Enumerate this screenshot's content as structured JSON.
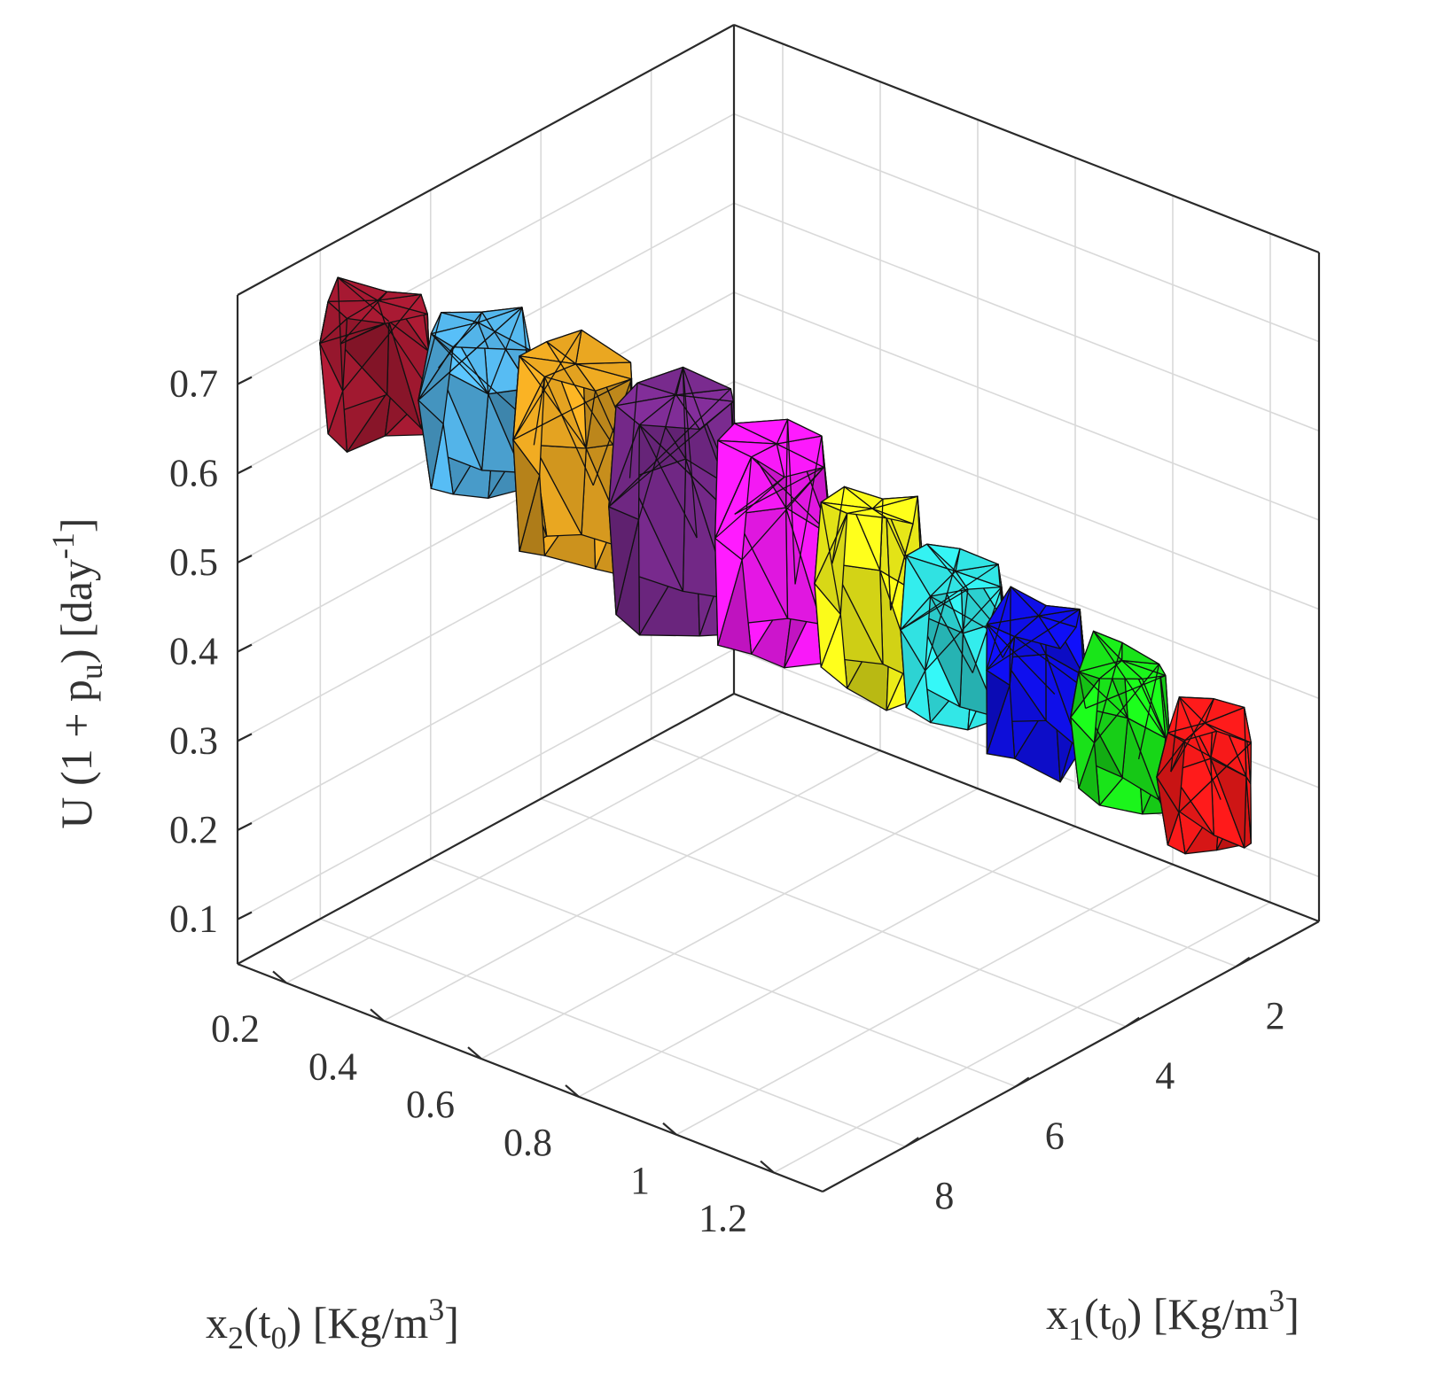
{
  "chart_data": {
    "type": "3d-polytope",
    "title": "",
    "xlabel": {
      "base": "x",
      "sub": "1",
      "mid": "(t",
      "sub2": "0",
      "tail": ") [Kg/m",
      "sup": "3",
      "end": "]"
    },
    "ylabel": {
      "base": "x",
      "sub": "2",
      "mid": "(t",
      "sub2": "0",
      "tail": ") [Kg/m",
      "sup": "3",
      "end": "]"
    },
    "zlabel": {
      "base": "U (1 + p",
      "sub": "u",
      "mid": ")   [day",
      "sup": "-1",
      "end": "]"
    },
    "x_ticks": [
      "2",
      "4",
      "6",
      "8"
    ],
    "y_ticks": [
      "0.2",
      "0.4",
      "0.6",
      "0.8",
      "1",
      "1.2"
    ],
    "z_ticks": [
      "0.1",
      "0.2",
      "0.3",
      "0.4",
      "0.5",
      "0.6",
      "0.7"
    ],
    "x_tick_values": [
      2,
      4,
      6,
      8
    ],
    "y_tick_values": [
      0.2,
      0.4,
      0.6,
      0.8,
      1.0,
      1.2
    ],
    "z_tick_values": [
      0.1,
      0.2,
      0.3,
      0.4,
      0.5,
      0.6,
      0.7
    ],
    "xlim": [
      0.5,
      9.5
    ],
    "ylim": [
      0.1,
      1.3
    ],
    "zlim": [
      0.05,
      0.8
    ],
    "grid": true,
    "series": [
      {
        "color": "#ff1a1a",
        "x": 0.8,
        "y": 1.1,
        "z": 0.11,
        "zmax": 0.24,
        "dx": 0.9,
        "dy": 0.16
      },
      {
        "color": "#1aee1a",
        "x": 1.6,
        "y": 1.02,
        "z": 0.17,
        "zmax": 0.32,
        "dx": 0.95,
        "dy": 0.17
      },
      {
        "color": "#0f0fee",
        "x": 2.4,
        "y": 0.94,
        "z": 0.23,
        "zmax": 0.38,
        "dx": 1.0,
        "dy": 0.17
      },
      {
        "color": "#33eeee",
        "x": 3.2,
        "y": 0.86,
        "z": 0.28,
        "zmax": 0.44,
        "dx": 1.05,
        "dy": 0.18
      },
      {
        "color": "#ffff1a",
        "x": 4.0,
        "y": 0.78,
        "z": 0.33,
        "zmax": 0.52,
        "dx": 1.1,
        "dy": 0.19
      },
      {
        "color": "#ff1aff",
        "x": 4.85,
        "y": 0.68,
        "z": 0.38,
        "zmax": 0.6,
        "dx": 1.2,
        "dy": 0.2
      },
      {
        "color": "#7e2c94",
        "x": 5.7,
        "y": 0.57,
        "z": 0.42,
        "zmax": 0.66,
        "dx": 1.3,
        "dy": 0.22
      },
      {
        "color": "#eeaa22",
        "x": 6.55,
        "y": 0.46,
        "z": 0.49,
        "zmax": 0.7,
        "dx": 1.25,
        "dy": 0.2
      },
      {
        "color": "#55b8ee",
        "x": 7.35,
        "y": 0.35,
        "z": 0.57,
        "zmax": 0.75,
        "dx": 1.2,
        "dy": 0.19
      },
      {
        "color": "#aa1a33",
        "x": 8.2,
        "y": 0.24,
        "z": 0.64,
        "zmax": 0.78,
        "dx": 1.2,
        "dy": 0.18
      }
    ]
  }
}
